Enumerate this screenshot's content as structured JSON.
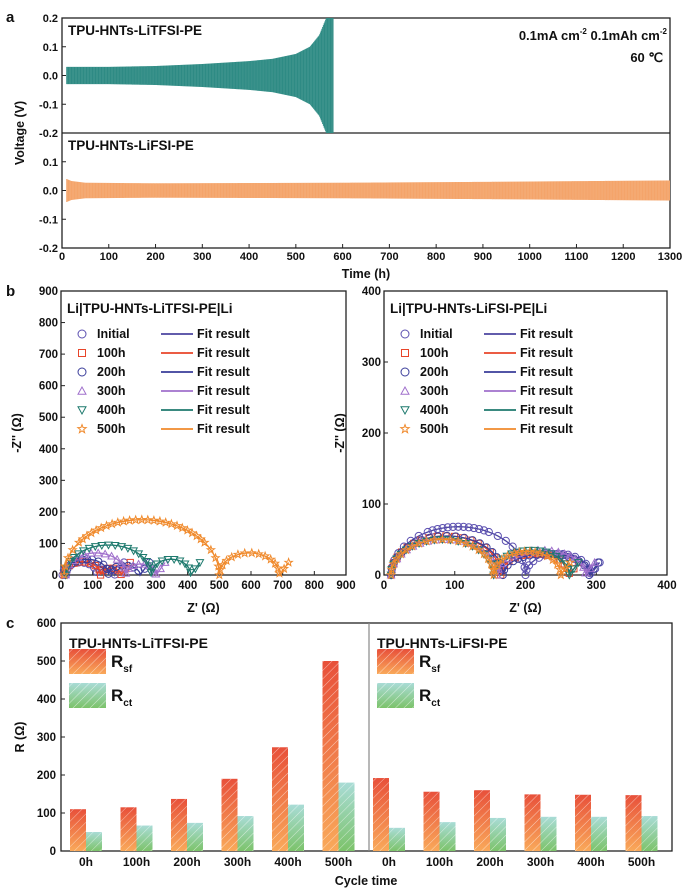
{
  "panel_labels": {
    "a": "a",
    "b": "b",
    "c": "c"
  },
  "chart_data": [
    {
      "id": "a",
      "type": "line",
      "xlabel": "Time (h)",
      "ylabel": "Voltage (V)",
      "xlim": [
        0,
        1300
      ],
      "x_ticks": [
        0,
        100,
        200,
        300,
        400,
        500,
        600,
        700,
        800,
        900,
        1000,
        1100,
        1200,
        1300
      ],
      "ylim": [
        -0.2,
        0.2
      ],
      "y_ticks": [
        "0.2",
        "0.1",
        "0.0",
        "-0.1",
        "-0.2"
      ],
      "annotation": {
        "current": "0.1mA cm",
        "current_sup": "-2",
        "capacity": "0.1mAh cm",
        "capacity_sup": "-2",
        "temperature": "60 ℃"
      },
      "series": [
        {
          "name": "TPU-HNTs-LiTFSI-PE",
          "color": "#2e8b84",
          "envelope_time_h": [
            10,
            100,
            200,
            300,
            400,
            450,
            500,
            530,
            550,
            565,
            575,
            580
          ],
          "envelope_amplitude_v": [
            0.03,
            0.03,
            0.033,
            0.04,
            0.05,
            0.058,
            0.075,
            0.1,
            0.14,
            0.2,
            0.25,
            0.25
          ]
        },
        {
          "name": "TPU-HNTs-LiFSI-PE",
          "color": "#f4a46a",
          "envelope_time_h": [
            10,
            20,
            50,
            200,
            600,
            900,
            1300
          ],
          "envelope_amplitude_v": [
            0.04,
            0.033,
            0.027,
            0.025,
            0.027,
            0.03,
            0.035
          ]
        }
      ]
    },
    {
      "id": "b-left",
      "type": "scatter",
      "title": "Li|TPU-HNTs-LiTFSI-PE|Li",
      "xlabel": "Z' (Ω)",
      "ylabel": "-Z'' (Ω)",
      "xlim": [
        0,
        900
      ],
      "ylim": [
        0,
        900
      ],
      "x_ticks": [
        0,
        100,
        200,
        300,
        400,
        500,
        600,
        700,
        800,
        900
      ],
      "y_ticks": [
        0,
        100,
        200,
        300,
        400,
        500,
        600,
        700,
        800,
        900
      ],
      "fit_label": "Fit result",
      "series": [
        {
          "name": "Initial",
          "marker": "circle",
          "color": "#5b4fb0",
          "fit_color": "#4b44a0",
          "arcs": [
            [
              5,
              115,
              40
            ],
            [
              115,
              170,
              20
            ]
          ]
        },
        {
          "name": "100h",
          "marker": "square",
          "color": "#e8452a",
          "fit_color": "#e8452a",
          "arcs": [
            [
              10,
              125,
              42
            ],
            [
              125,
              190,
              22
            ]
          ]
        },
        {
          "name": "200h",
          "marker": "circle",
          "color": "#3a3d9a",
          "fit_color": "#3a3d9a",
          "arcs": [
            [
              15,
              150,
              50
            ],
            [
              150,
              250,
              30
            ]
          ]
        },
        {
          "name": "300h",
          "marker": "triangle",
          "color": "#a070cc",
          "fit_color": "#a070cc",
          "arcs": [
            [
              15,
              205,
              70
            ],
            [
              205,
              300,
              35
            ]
          ]
        },
        {
          "name": "400h",
          "marker": "triangle-down",
          "color": "#1e7a6e",
          "fit_color": "#1e7a6e",
          "arcs": [
            [
              15,
              285,
              95
            ],
            [
              285,
              410,
              50
            ]
          ]
        },
        {
          "name": "500h",
          "marker": "star",
          "color": "#f08a2c",
          "fit_color": "#f08a2c",
          "arcs": [
            [
              10,
              500,
              175
            ],
            [
              500,
              690,
              70
            ]
          ]
        }
      ]
    },
    {
      "id": "b-right",
      "type": "scatter",
      "title": "Li|TPU-HNTs-LiFSI-PE|Li",
      "xlabel": "Z' (Ω)",
      "ylabel": "-Z'' (Ω)",
      "xlim": [
        0,
        400
      ],
      "ylim": [
        0,
        400
      ],
      "x_ticks": [
        0,
        100,
        200,
        300,
        400
      ],
      "y_ticks": [
        0,
        100,
        200,
        300,
        400
      ],
      "fit_label": "Fit result",
      "series": [
        {
          "name": "Initial",
          "marker": "circle",
          "color": "#5b4fb0",
          "fit_color": "#4b44a0",
          "arcs": [
            [
              10,
              200,
              68
            ],
            [
              200,
              292,
              30
            ]
          ]
        },
        {
          "name": "100h",
          "marker": "square",
          "color": "#e8452a",
          "fit_color": "#e8452a",
          "arcs": [
            [
              10,
              165,
              55
            ],
            [
              165,
              262,
              30
            ]
          ]
        },
        {
          "name": "200h",
          "marker": "circle",
          "color": "#3a3d9a",
          "fit_color": "#3a3d9a",
          "arcs": [
            [
              10,
              168,
              55
            ],
            [
              168,
              290,
              30
            ]
          ]
        },
        {
          "name": "300h",
          "marker": "triangle",
          "color": "#a070cc",
          "fit_color": "#a070cc",
          "arcs": [
            [
              10,
              160,
              50
            ],
            [
              160,
              285,
              35
            ]
          ]
        },
        {
          "name": "400h",
          "marker": "triangle-down",
          "color": "#1e7a6e",
          "fit_color": "#1e7a6e",
          "arcs": [
            [
              10,
              155,
              50
            ],
            [
              155,
              262,
              35
            ]
          ]
        },
        {
          "name": "500h",
          "marker": "star",
          "color": "#f08a2c",
          "fit_color": "#f08a2c",
          "arcs": [
            [
              10,
              155,
              50
            ],
            [
              155,
              250,
              33
            ]
          ]
        }
      ]
    },
    {
      "id": "c",
      "type": "bar",
      "xlabel": "Cycle time",
      "ylabel": "R (Ω)",
      "ylim": [
        0,
        600
      ],
      "y_ticks": [
        0,
        100,
        200,
        300,
        400,
        500,
        600
      ],
      "legend": [
        {
          "label": "R",
          "sub": "sf"
        },
        {
          "label": "R",
          "sub": "ct"
        }
      ],
      "groups": [
        {
          "title": "TPU-HNTs-LiTFSI-PE",
          "categories": [
            "0h",
            "100h",
            "200h",
            "300h",
            "400h",
            "500h"
          ],
          "series": [
            {
              "name": "Rsf",
              "values": [
                110,
                115,
                137,
                190,
                273,
                500
              ]
            },
            {
              "name": "Rct",
              "values": [
                50,
                67,
                74,
                92,
                122,
                180
              ]
            }
          ]
        },
        {
          "title": "TPU-HNTs-LiFSI-PE",
          "categories": [
            "0h",
            "100h",
            "200h",
            "300h",
            "400h",
            "500h"
          ],
          "series": [
            {
              "name": "Rsf",
              "values": [
                192,
                156,
                160,
                149,
                148,
                147
              ]
            },
            {
              "name": "Rct",
              "values": [
                61,
                76,
                87,
                90,
                90,
                92
              ]
            }
          ]
        }
      ],
      "colors": {
        "rsf_top": "#e8503a",
        "rsf_bottom": "#f9a95a",
        "rct_top": "#a9dcd6",
        "rct_bottom": "#7cc36a"
      }
    }
  ]
}
